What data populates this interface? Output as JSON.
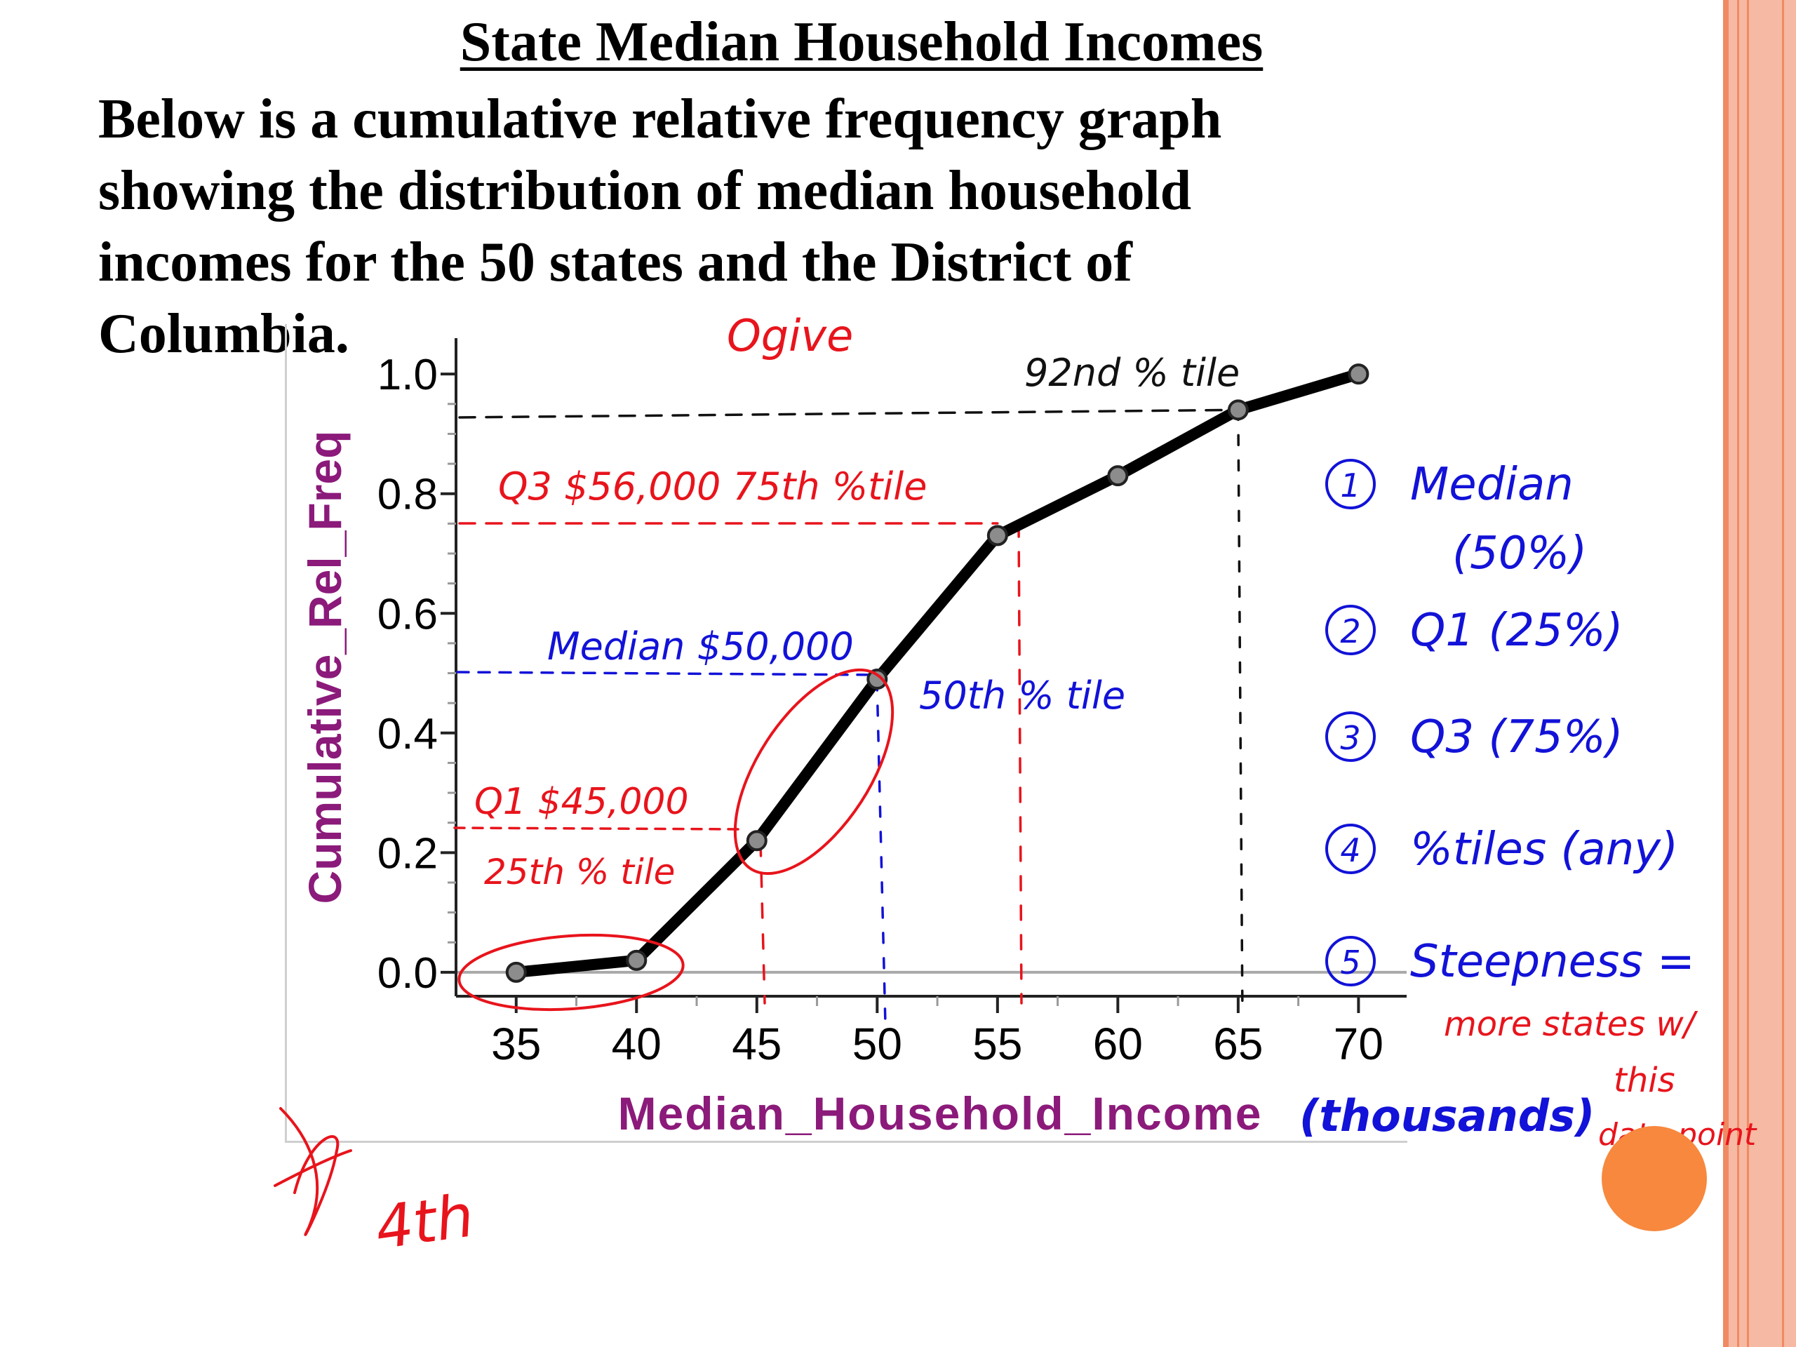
{
  "slide": {
    "title": "State Median Household Incomes",
    "body": [
      "Below is a cumulative relative frequency graph",
      "showing the distribution of median household",
      "incomes for the 50 states and the District of",
      "Columbia."
    ],
    "colors": {
      "border": "#f6b9a3",
      "border_accent": "#f08a63",
      "highlight": "#f7883e"
    }
  },
  "chart_data": {
    "type": "line",
    "x": [
      35,
      40,
      45,
      50,
      55,
      60,
      65,
      70
    ],
    "y": [
      0.0,
      0.02,
      0.22,
      0.49,
      0.73,
      0.83,
      0.94,
      1.0
    ],
    "xlabel": "Median_Household_Income",
    "ylabel": "Cumulative_Rel_Freq",
    "xticks": [
      "35",
      "40",
      "45",
      "50",
      "55",
      "60",
      "65",
      "70"
    ],
    "yticks": [
      "0.0",
      "0.2",
      "0.4",
      "0.6",
      "0.8",
      "1.0"
    ],
    "xlim": [
      32.5,
      72
    ],
    "ylim": [
      -0.04,
      1.06
    ],
    "line_color": "#000000",
    "label_color": "#8b1a7a"
  },
  "annotations": {
    "ogive": "Ogive",
    "p92": "92nd % tile",
    "q3": "Q3  $56,000   75th %tile",
    "median": "Median  $50,000",
    "p50": "50th % tile",
    "q1": "Q1   $45,000",
    "p25": "25th % tile",
    "thousands": "(thousands)",
    "list": [
      {
        "num": "1",
        "text": "Median"
      },
      {
        "num": "",
        "text": "(50%)"
      },
      {
        "num": "2",
        "text": "Q1 (25%)"
      },
      {
        "num": "3",
        "text": "Q3 (75%)"
      },
      {
        "num": "4",
        "text": "%tiles (any)"
      },
      {
        "num": "5",
        "text": "Steepness ="
      }
    ],
    "steepness": [
      "more states w/",
      "this",
      "data point"
    ],
    "fourth": "4th",
    "colors": {
      "red": "#e8141c",
      "blue": "#1212d8",
      "black": "#111111"
    }
  }
}
